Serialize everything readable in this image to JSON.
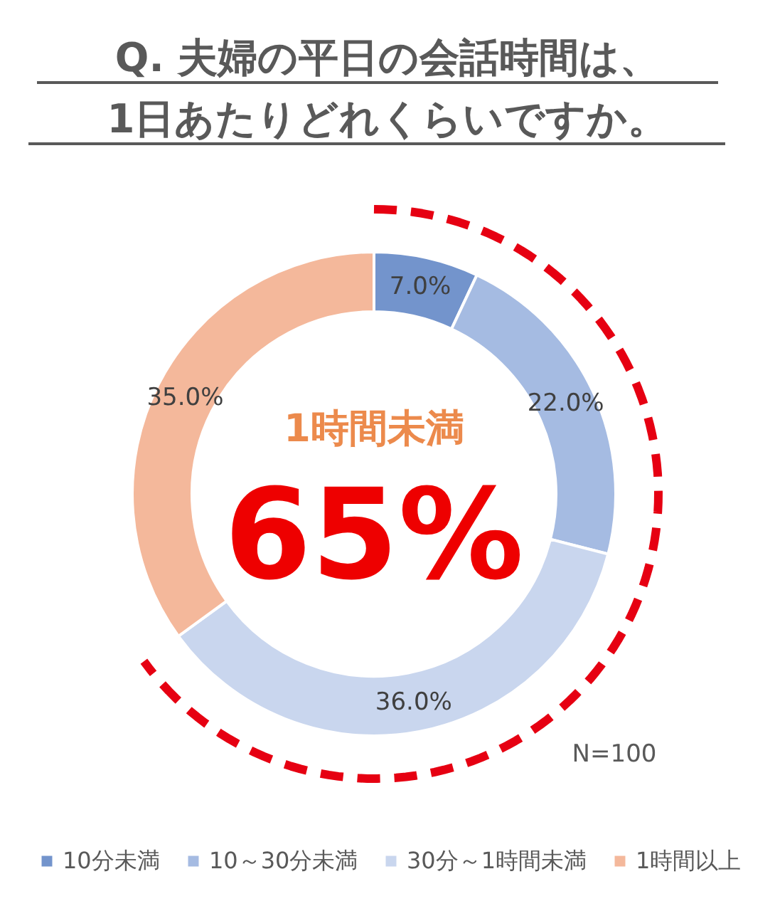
{
  "chart_data": {
    "type": "donut",
    "title": "Q. 夫婦の平日の会話時間は、\n1日あたりどれくらいですか。",
    "categories": [
      "10分未満",
      "10～30分未満",
      "30分～1時間未満",
      "1時間以上"
    ],
    "values": [
      7,
      22,
      36,
      35
    ],
    "colors": [
      "#7394cc",
      "#a5bbe2",
      "#c9d6ee",
      "#f4b89b"
    ],
    "value_labels": [
      "7.0%",
      "22.0%",
      "36.0%",
      "35.0%"
    ],
    "legend": "bottom",
    "annotations": [
      "1時間未満",
      "65%",
      "N=100"
    ]
  }
}
